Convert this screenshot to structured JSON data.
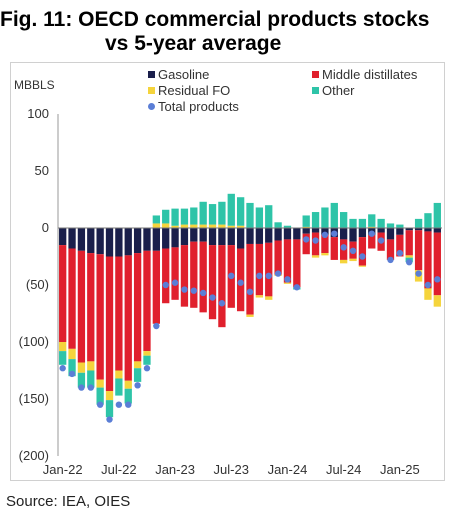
{
  "header": {
    "title_line1": "Fig. 11: OECD commercial products stocks",
    "title_line2": "vs 5-year average"
  },
  "source": "Source: IEA, OIES",
  "chart_data": {
    "type": "bar",
    "stacked": true,
    "title": "",
    "ylabel": "MBBLS",
    "ylim": [
      -200,
      100
    ],
    "yticks": [
      100,
      50,
      0,
      -50,
      -100,
      -150,
      -200
    ],
    "ytick_labels": [
      "100",
      "50",
      "0",
      "(50)",
      "(100)",
      "(150)",
      "(200)"
    ],
    "xtick_labels": [
      "Jan-22",
      "Jul-22",
      "Jan-23",
      "Jul-23",
      "Jan-24",
      "Jul-24",
      "Jan-25"
    ],
    "xtick_index": [
      0,
      6,
      12,
      18,
      24,
      30,
      36
    ],
    "grid": false,
    "legend_position": "top",
    "series": [
      {
        "name": "Gasoline",
        "color": "#1a1f4b",
        "values": [
          -15,
          -18,
          -20,
          -22,
          -23,
          -25,
          -25,
          -24,
          -22,
          -20,
          -20,
          -18,
          -17,
          -15,
          -12,
          -12,
          -15,
          -15,
          -15,
          -18,
          -14,
          -14,
          -13,
          -11,
          -10,
          -10,
          -5,
          -4,
          -6,
          -8,
          -10,
          -12,
          -8,
          -6,
          -4,
          -10,
          -6,
          -2,
          -2,
          -3,
          -4
        ]
      },
      {
        "name": "Middle distillates",
        "color": "#e0202d",
        "values": [
          -85,
          -88,
          -98,
          -95,
          -110,
          -118,
          -100,
          -110,
          -95,
          -88,
          -64,
          -48,
          -46,
          -54,
          -58,
          -62,
          -65,
          -72,
          -55,
          -55,
          -62,
          -45,
          -47,
          -30,
          -38,
          -42,
          -18,
          -20,
          -16,
          -20,
          -18,
          -15,
          -25,
          -12,
          -16,
          -18,
          -19,
          -22,
          -35,
          -50,
          -55
        ]
      },
      {
        "name": "Residual FO",
        "color": "#f5d43c",
        "values": [
          -8,
          -9,
          -9,
          -8,
          -7,
          -8,
          -7,
          -7,
          -6,
          -4,
          4,
          4,
          2,
          3,
          3,
          3,
          3,
          3,
          2,
          2,
          -2,
          -2,
          -3,
          -1,
          -1,
          0,
          1,
          -2,
          -2,
          0,
          -3,
          -2,
          -1,
          1,
          0,
          0,
          0,
          -2,
          -10,
          -10,
          -10
        ]
      },
      {
        "name": "Other",
        "color": "#2ec4a8",
        "values": [
          -12,
          -15,
          -13,
          -15,
          -15,
          -15,
          -15,
          -13,
          -12,
          -8,
          7,
          12,
          15,
          14,
          15,
          20,
          18,
          20,
          28,
          25,
          22,
          18,
          20,
          5,
          2,
          -2,
          10,
          14,
          18,
          22,
          14,
          8,
          8,
          11,
          8,
          4,
          3,
          -4,
          8,
          13,
          22
        ]
      }
    ],
    "total_products": {
      "name": "Total products",
      "color": "#5b7ed6",
      "values": [
        -123,
        -128,
        -140,
        -140,
        -155,
        -168,
        -155,
        -155,
        -138,
        -123,
        -86,
        -50,
        -48,
        -54,
        -55,
        -57,
        -61,
        -66,
        -42,
        -48,
        -56,
        -42,
        -42,
        -40,
        -45,
        -52,
        -10,
        -11,
        -6,
        -5,
        -17,
        -20,
        -25,
        -5,
        -11,
        -28,
        -22,
        -30,
        -40,
        -50,
        -45
      ]
    }
  }
}
